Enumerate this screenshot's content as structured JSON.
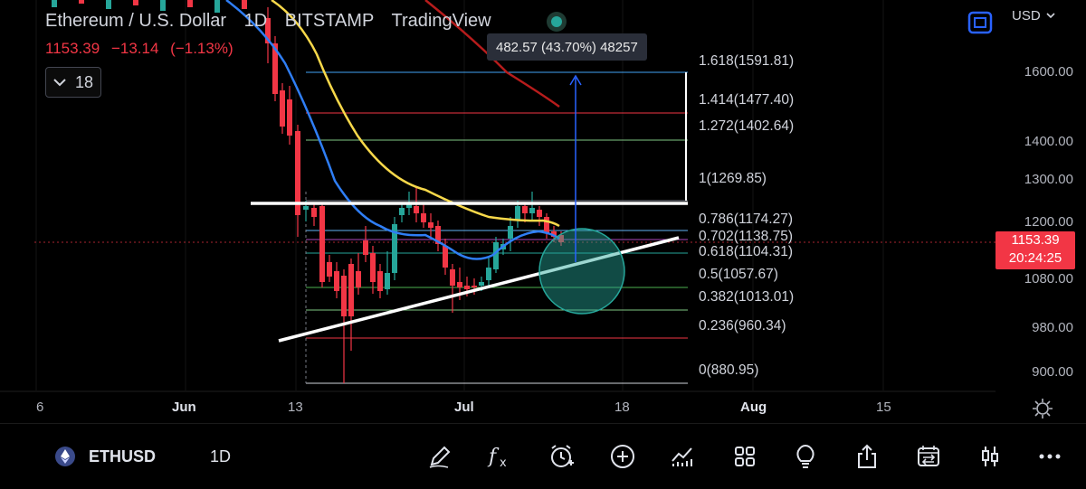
{
  "header": {
    "symbol_name": "Ethereum / U.S. Dollar",
    "interval": "1D",
    "exchange": "BITSTAMP",
    "brand": "TradingView",
    "last_price": "1153.39",
    "change": "−13.14",
    "change_percent": "(−1.13%)",
    "interval_button_value": "18"
  },
  "measure_tooltip": "482.57 (43.70%) 48257",
  "currency": "USD",
  "fib_levels": [
    {
      "label": "1.618(1591.81)",
      "color": "#42a5f5"
    },
    {
      "label": "1.414(1477.40)",
      "color": "#f23645"
    },
    {
      "label": "1.272(1402.64)",
      "color": "#81c784"
    },
    {
      "label": "1(1269.85)",
      "color": "#787b86"
    },
    {
      "label": "0.786(1174.27)",
      "color": "#64b5f6"
    },
    {
      "label": "0.702(1138.75)",
      "color": "#ab47bc"
    },
    {
      "label": "0.618(1104.31)",
      "color": "#26a69a"
    },
    {
      "label": "0.5(1057.67)",
      "color": "#4caf50"
    },
    {
      "label": "0.382(1013.01)",
      "color": "#81c784"
    },
    {
      "label": "0.236(960.34)",
      "color": "#f23645"
    },
    {
      "label": "0(880.95)",
      "color": "#d1d4dc"
    }
  ],
  "price_axis": [
    "1600.00",
    "1400.00",
    "1300.00",
    "1200.00",
    "1080.00",
    "980.00",
    "900.00"
  ],
  "price_tag": {
    "price": "1153.39",
    "countdown": "20:24:25"
  },
  "time_axis": [
    "6",
    "Jun",
    "13",
    "Jul",
    "18",
    "Aug",
    "15"
  ],
  "bottom_bar": {
    "symbol": "ETHUSD",
    "interval": "1D",
    "tools": [
      "drawing-tools",
      "indicators",
      "alert",
      "add",
      "compare",
      "layouts",
      "ideas",
      "share",
      "replay",
      "chart-type",
      "more"
    ]
  },
  "colors": {
    "up": "#26a69a",
    "down": "#f23645",
    "ma_yellow": "#f7d84a",
    "ma_blue": "#2f7ef5",
    "ma_red": "#b71c1c",
    "background": "#000000"
  }
}
